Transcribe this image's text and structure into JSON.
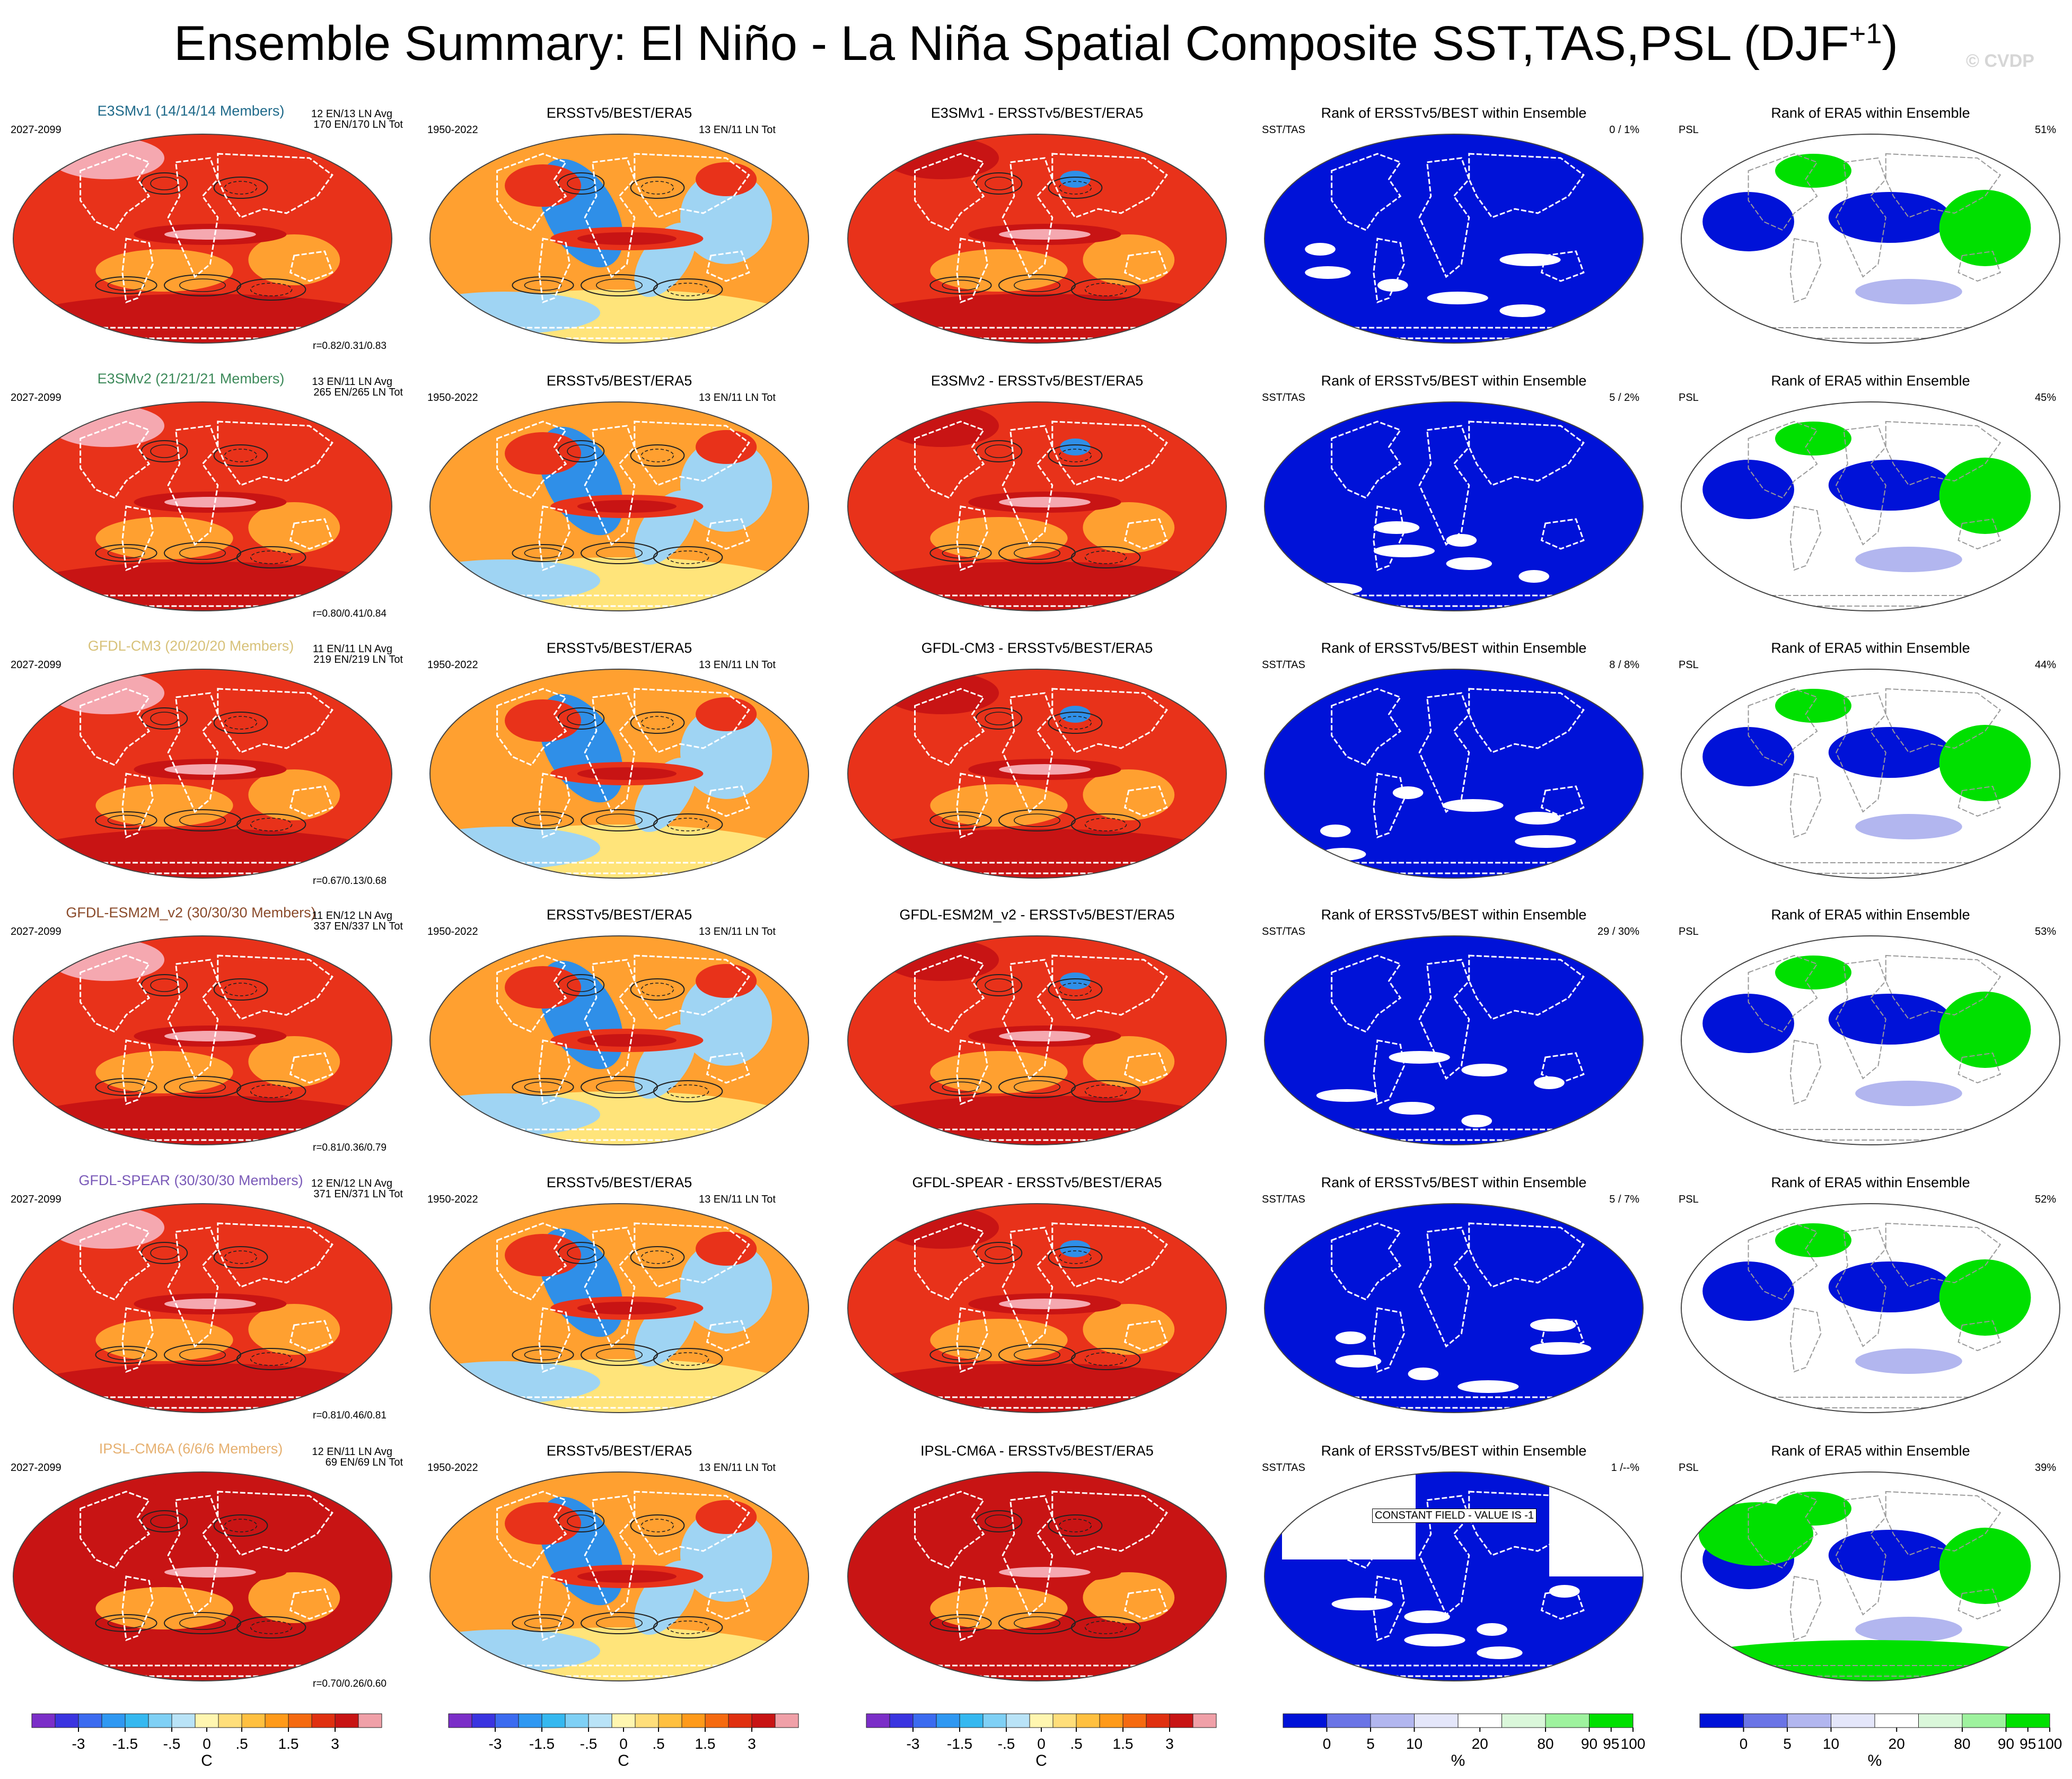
{
  "title": {
    "main": "Ensemble Summary: El Niño - La Niña Spatial Composite SST,TAS,PSL (DJF",
    "sup": "+1",
    "close": ")"
  },
  "watermark": "© CVDP",
  "column_subtitles": {
    "obs": "ERSSTv5/BEST/ERA5",
    "rank_sst": "Rank of ERSSTv5/BEST within Ensemble",
    "rank_psl": "Rank of ERA5 within Ensemble",
    "sst_tas": "SST/TAS",
    "psl": "PSL",
    "obs_period": "1950-2022",
    "obs_count": "13 EN/11 LN Tot"
  },
  "rows": [
    {
      "model": "E3SMv1 (14/14/14 Members)",
      "color": "#1f6a8a",
      "period": "2027-2099",
      "avg": "12 EN/13 LN Avg",
      "tot": "170 EN/170 LN Tot",
      "corr": "r=0.82/0.31/0.83",
      "diff": "E3SMv1 - ERSSTv5/BEST/ERA5",
      "rank_sst_pct": "0 /  1%",
      "rank_psl_pct": "51%",
      "note": ""
    },
    {
      "model": "E3SMv2 (21/21/21 Members)",
      "color": "#3d8a5a",
      "period": "2027-2099",
      "avg": "13 EN/11 LN Avg",
      "tot": "265 EN/265 LN Tot",
      "corr": "r=0.80/0.41/0.84",
      "diff": "E3SMv2 - ERSSTv5/BEST/ERA5",
      "rank_sst_pct": "5 /  2%",
      "rank_psl_pct": "45%",
      "note": ""
    },
    {
      "model": "GFDL-CM3 (20/20/20 Members)",
      "color": "#d8c27a",
      "period": "2027-2099",
      "avg": "11 EN/11 LN Avg",
      "tot": "219 EN/219 LN Tot",
      "corr": "r=0.67/0.13/0.68",
      "diff": "GFDL-CM3 - ERSSTv5/BEST/ERA5",
      "rank_sst_pct": "8 /  8%",
      "rank_psl_pct": "44%",
      "note": ""
    },
    {
      "model": "GFDL-ESM2M_v2 (30/30/30 Members)",
      "color": "#8a4a2a",
      "period": "2027-2099",
      "avg": "11 EN/12 LN Avg",
      "tot": "337 EN/337 LN Tot",
      "corr": "r=0.81/0.36/0.79",
      "diff": "GFDL-ESM2M_v2 - ERSSTv5/BEST/ERA5",
      "rank_sst_pct": "29 /  30%",
      "rank_psl_pct": "53%",
      "note": ""
    },
    {
      "model": "GFDL-SPEAR (30/30/30 Members)",
      "color": "#7a5ab8",
      "period": "2027-2099",
      "avg": "12 EN/12 LN Avg",
      "tot": "371 EN/371 LN Tot",
      "corr": "r=0.81/0.46/0.81",
      "diff": "GFDL-SPEAR - ERSSTv5/BEST/ERA5",
      "rank_sst_pct": "5 /  7%",
      "rank_psl_pct": "52%",
      "note": ""
    },
    {
      "model": "IPSL-CM6A (6/6/6 Members)",
      "color": "#e6b070",
      "period": "2027-2099",
      "avg": "12 EN/11 LN Avg",
      "tot": "69 EN/69 LN Tot",
      "corr": "r=0.70/0.26/0.60",
      "diff": "IPSL-CM6A - ERSSTv5/BEST/ERA5",
      "rank_sst_pct": "1 /--%",
      "rank_psl_pct": "39%",
      "note": "CONSTANT FIELD - VALUE IS -1"
    }
  ],
  "chart_data": {
    "type": "heatmap",
    "description_units": "Composite anomaly colour scale (C) and ensemble rank scale (%)",
    "temperature_colorbar": {
      "unit": "C",
      "tick_labels": [
        "-3",
        "-1.5",
        "-.5",
        "0",
        ".5",
        "1.5",
        "3"
      ],
      "bins": [
        "#7b2ec8",
        "#3a34e0",
        "#3b6bf0",
        "#2f98f2",
        "#35b8f0",
        "#7fd0f5",
        "#b9e3f7",
        "#fff6b0",
        "#ffde7a",
        "#ffc040",
        "#ff9a1a",
        "#f56a10",
        "#e03010",
        "#c81414",
        "#f0a0a8"
      ]
    },
    "rank_colorbar": {
      "unit": "%",
      "tick_labels": [
        "0",
        "5",
        "10",
        "20",
        "80",
        "90",
        "95",
        "100"
      ],
      "bins": [
        "#0012d8",
        "#6a74e6",
        "#b2b6ef",
        "#e4e6fa",
        "#ffffff",
        "#daf7da",
        "#9ef29e",
        "#00e000"
      ]
    },
    "palette": {
      "land_outline": "#ffffff",
      "warm": "#e8321a",
      "deep_warm": "#c81414",
      "pink": "#f5a8b0",
      "orange": "#ffa030",
      "yellow": "#ffe47a",
      "light_blue": "#9fd4f3",
      "blue": "#2f8fe8",
      "rank_blue": "#0012d8",
      "rank_green": "#00e000"
    }
  }
}
